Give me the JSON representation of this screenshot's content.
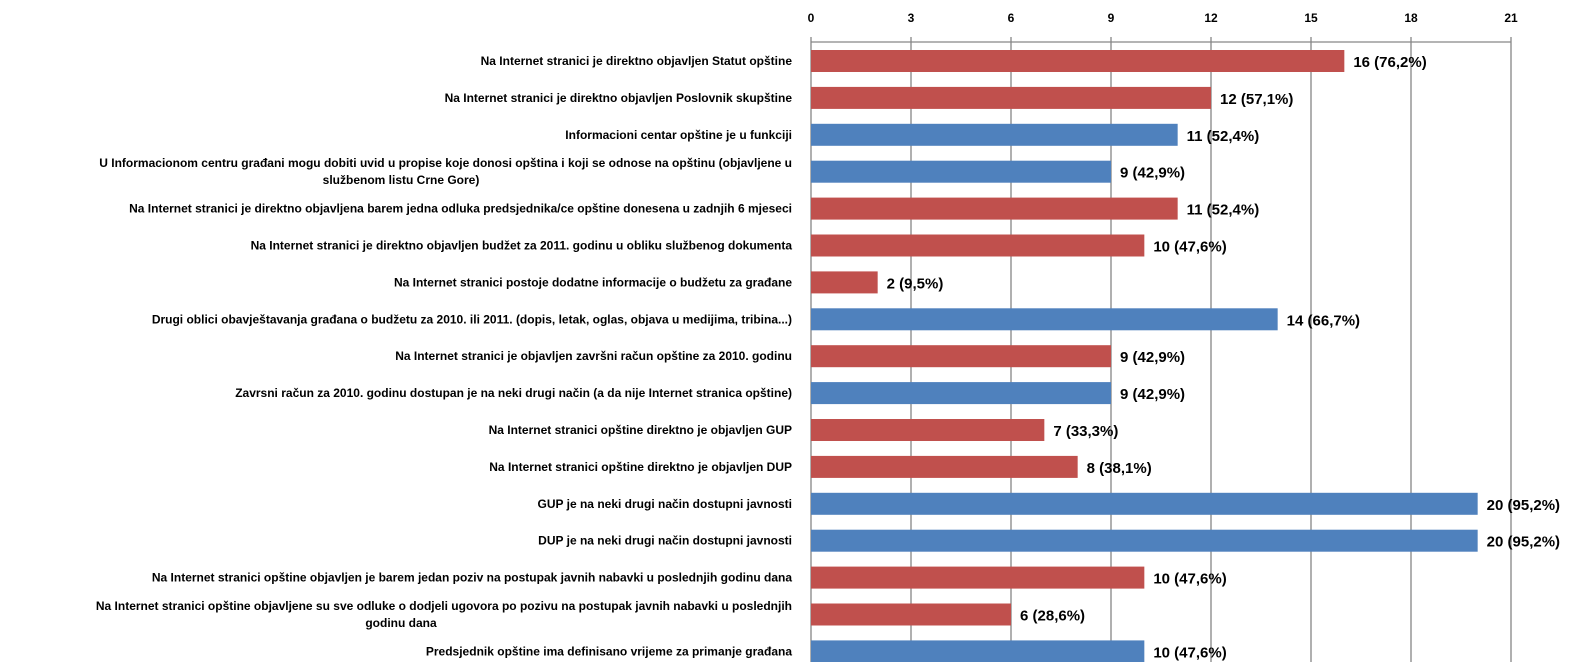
{
  "chart_data": {
    "type": "bar",
    "orientation": "horizontal",
    "title": "",
    "xlabel": "",
    "ylabel": "",
    "xlim": [
      0,
      21
    ],
    "ticks": [
      0,
      3,
      6,
      9,
      12,
      15,
      18,
      21
    ],
    "axis_position": "top",
    "grid": true,
    "colors": {
      "red": "#c0504d",
      "blue": "#4f81bd"
    },
    "bars": [
      {
        "label": [
          "Na Internet stranici je direktno objavljen  Statut opštine"
        ],
        "value": 16,
        "data_label": "16 (76,2%)",
        "color": "red"
      },
      {
        "label": [
          "Na Internet stranici je direktno objavljen  Poslovnik skupštine"
        ],
        "value": 12,
        "data_label": "12 (57,1%)",
        "color": "red"
      },
      {
        "label": [
          "Informacioni centar opštine je u funkciji"
        ],
        "value": 11,
        "data_label": "11 (52,4%)",
        "color": "blue"
      },
      {
        "label": [
          "U Informacionom centru građani  mogu dobiti  uvid u propise koje donosi opština i koji se odnose na opštinu (objavljene  u",
          "službenom listu Crne Gore)"
        ],
        "value": 9,
        "data_label": "9 (42,9%)",
        "color": "blue"
      },
      {
        "label": [
          "Na Internet stranici je direktno objavljena barem jedna odluka predsjednika/ce  opštine donesena u zadnjih  6 mjeseci"
        ],
        "value": 11,
        "data_label": "11 (52,4%)",
        "color": "red"
      },
      {
        "label": [
          "Na Internet stranici je direktno objavljen  budžet za 2011. godinu u obliku službenog dokumenta"
        ],
        "value": 10,
        "data_label": "10 (47,6%)",
        "color": "red"
      },
      {
        "label": [
          "Na Internet stranici postoje dodatne informacije  o budžetu za građane"
        ],
        "value": 2,
        "data_label": "2 (9,5%)",
        "color": "red"
      },
      {
        "label": [
          "Drugi oblici  obavještavanja  građana o budžetu za 2010. ili 2011. (dopis, letak, oglas,  objava  u medijima, tribina...)"
        ],
        "value": 14,
        "data_label": "14 (66,7%)",
        "color": "blue"
      },
      {
        "label": [
          "Na Internet stranici je objavljen  završni račun opštine za 2010. godinu"
        ],
        "value": 9,
        "data_label": "9 (42,9%)",
        "color": "red"
      },
      {
        "label": [
          "Zavrsni račun za 2010. godinu dostupan je na neki drugi način  (a da nije Internet stranica opštine)"
        ],
        "value": 9,
        "data_label": "9 (42,9%)",
        "color": "blue"
      },
      {
        "label": [
          "Na Internet stranici opštine direktno je objavljen  GUP"
        ],
        "value": 7,
        "data_label": "7 (33,3%)",
        "color": "red"
      },
      {
        "label": [
          "Na Internet stranici opštine direktno je objavljen  DUP"
        ],
        "value": 8,
        "data_label": "8 (38,1%)",
        "color": "red"
      },
      {
        "label": [
          "GUP je na neki drugi način  dostupni javnosti"
        ],
        "value": 20,
        "data_label": "20 (95,2%)",
        "color": "blue"
      },
      {
        "label": [
          "DUP je na neki drugi način  dostupni javnosti"
        ],
        "value": 20,
        "data_label": "20 (95,2%)",
        "color": "blue"
      },
      {
        "label": [
          "Na Internet stranici opštine objavljen  je barem jedan poziv na postupak javnih nabavki  u poslednjih godinu dana"
        ],
        "value": 10,
        "data_label": "10 (47,6%)",
        "color": "red"
      },
      {
        "label": [
          "Na Internet stranici opštine objavljene su sve odluke o dodjeli ugovora po pozivu na postupak javnih nabavki u poslednjih",
          "godinu dana"
        ],
        "value": 6,
        "data_label": "6 (28,6%)",
        "color": "red"
      },
      {
        "label": [
          "Predsjednik opštine ima definisano vrijeme za primanje građana"
        ],
        "value": 10,
        "data_label": "10 (47,6%)",
        "color": "blue"
      }
    ]
  }
}
